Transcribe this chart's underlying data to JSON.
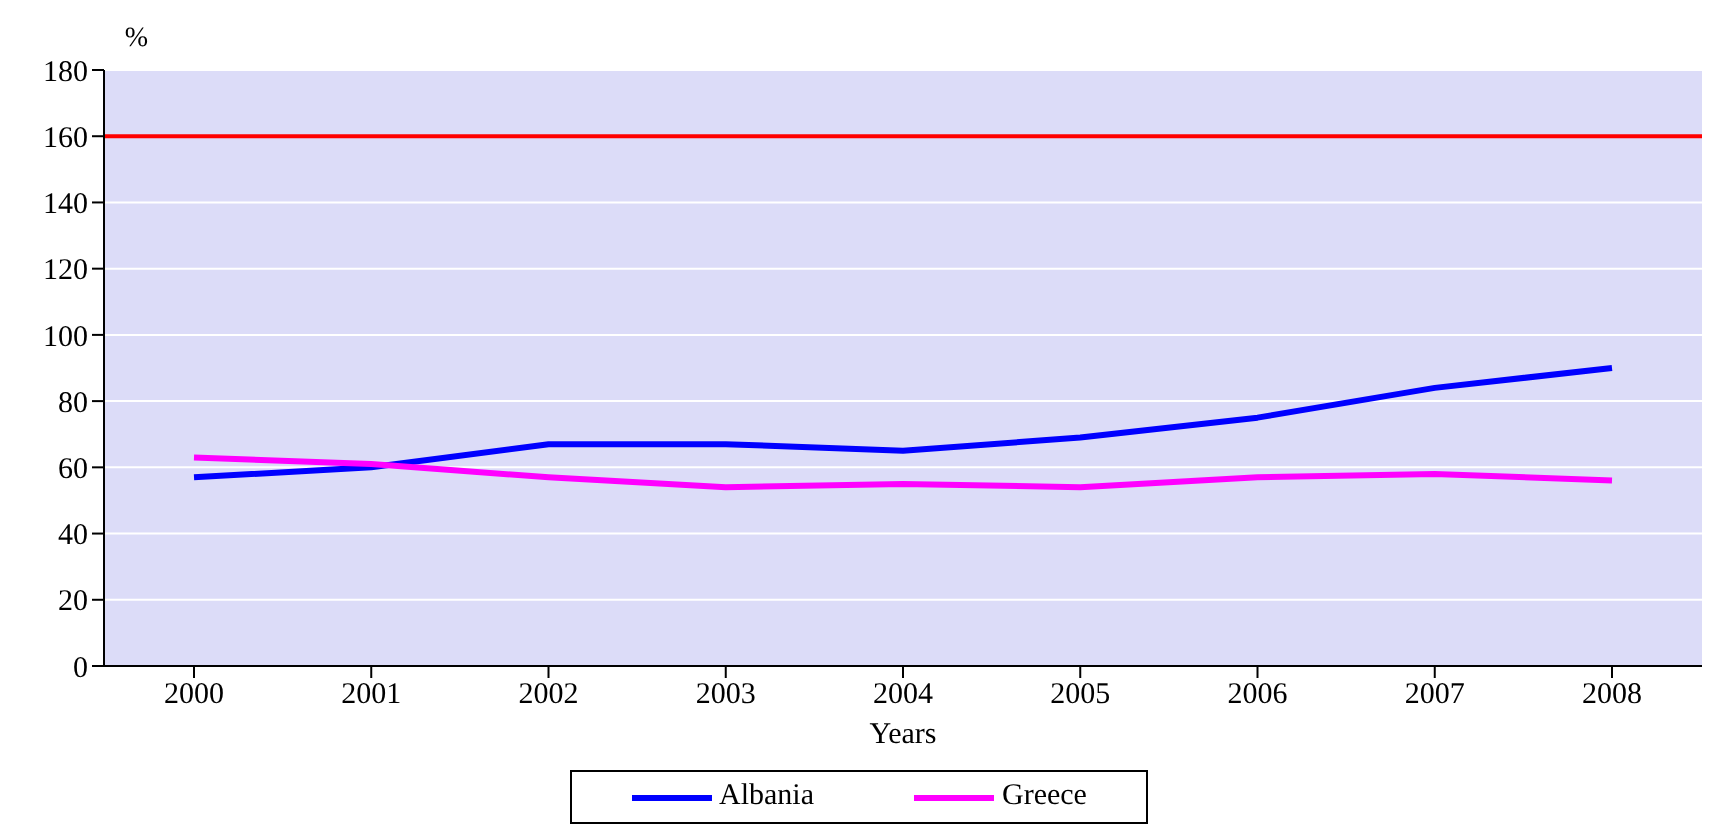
{
  "chart_data": {
    "type": "line",
    "xlabel": "Years",
    "ylabel": "%",
    "categories": [
      "2000",
      "2001",
      "2002",
      "2003",
      "2004",
      "2005",
      "2006",
      "2007",
      "2008"
    ],
    "series": [
      {
        "name": "Albania",
        "color": "#0000ff",
        "values": [
          57,
          60,
          67,
          67,
          65,
          69,
          75,
          84,
          90
        ]
      },
      {
        "name": "Greece",
        "color": "#ff00ff",
        "values": [
          63,
          61,
          57,
          54,
          55,
          54,
          57,
          58,
          56
        ]
      }
    ],
    "ref_lines": [
      {
        "axis": "y",
        "value": 160,
        "color": "#ff0000"
      }
    ],
    "ylim": [
      0,
      180
    ],
    "yticks": [
      0,
      20,
      40,
      60,
      80,
      100,
      120,
      140,
      160,
      180
    ],
    "grid": "y",
    "legend": "bottom",
    "marker": "none",
    "line_style": "solid"
  }
}
